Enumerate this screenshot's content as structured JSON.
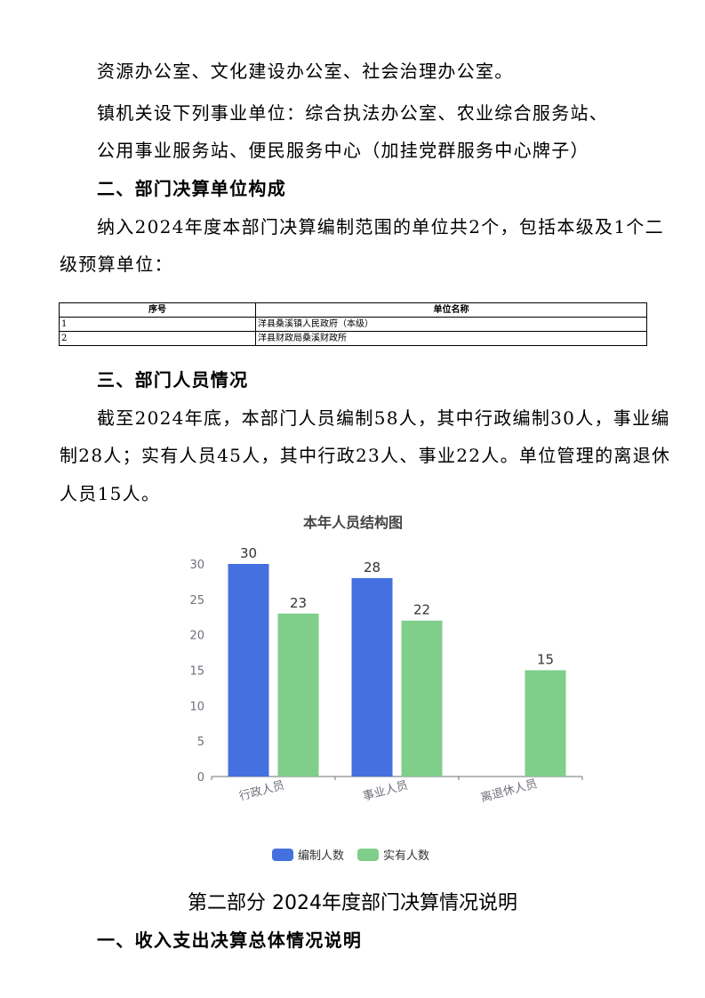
{
  "paragraphs": {
    "l1": "资源办公室、文化建设办公室、社会治理办公室。",
    "l2": "镇机关设下列事业单位：综合执法办公室、农业综合服务站、",
    "l3": "公用事业服务站、便民服务中心（加挂党群服务中心牌子）",
    "h2": "二、部门决算单位构成",
    "l4": "纳入2024年度本部门决算编制范围的单位共2个，包括本级及1个二",
    "l5": "级预算单位：",
    "h3": "三、部门人员情况",
    "l6": "截至2024年底，本部门人员编制58人，其中行政编制30人，事业编",
    "l7": "制28人；实有人员45人，其中行政23人、事业22人。单位管理的离退休",
    "l8": "人员15人。",
    "part2": "第二部分 2024年度部门决算情况说明",
    "h_part2_1": "一、收入支出决算总体情况说明"
  },
  "table": {
    "headers": [
      "序号",
      "单位名称"
    ],
    "rows": [
      [
        "1",
        "洋县桑溪镇人民政府（本级）"
      ],
      [
        "2",
        "洋县财政局桑溪财政所"
      ]
    ]
  },
  "chart_data": {
    "type": "bar",
    "title": "本年人员结构图",
    "categories": [
      "行政人员",
      "事业人员",
      "离退休人员"
    ],
    "series": [
      {
        "name": "编制人数",
        "values": [
          30,
          28,
          null
        ],
        "color": "#4470e0"
      },
      {
        "name": "实有人数",
        "values": [
          23,
          22,
          15
        ],
        "color": "#7fce8a"
      }
    ],
    "ylim": [
      0,
      30
    ],
    "yticks": [
      0,
      5,
      10,
      15,
      20,
      25,
      30
    ],
    "grid": false,
    "legend": "bottom"
  }
}
